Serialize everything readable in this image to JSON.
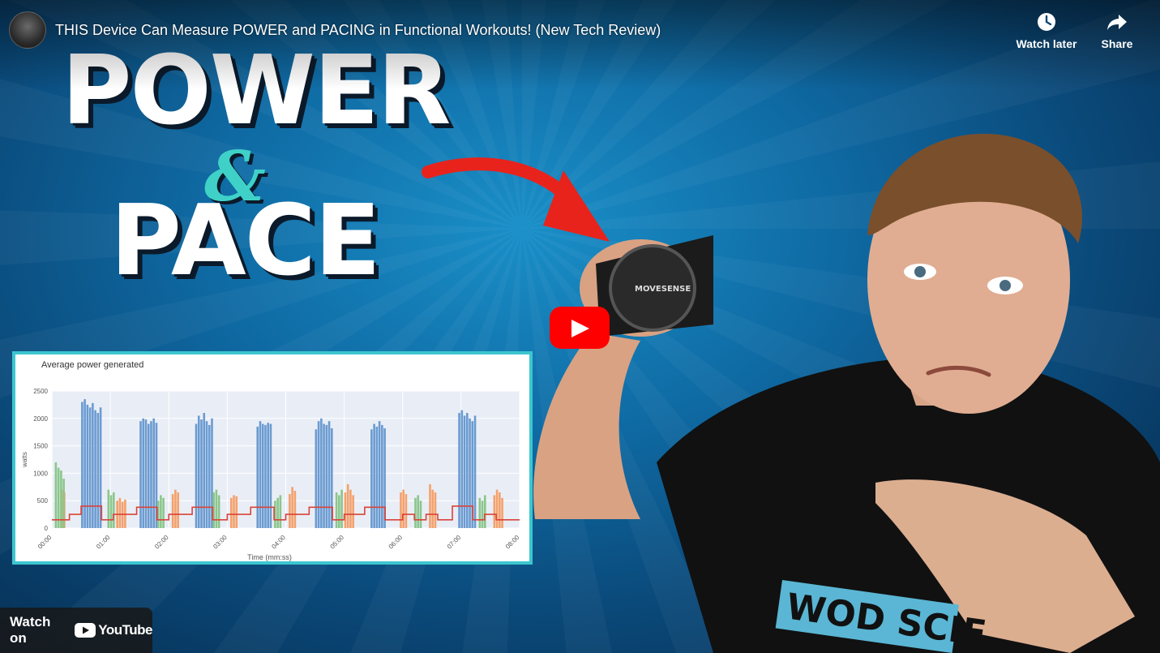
{
  "video": {
    "title": "THIS Device Can Measure POWER and PACING in Functional Workouts! (New Tech Review)"
  },
  "actions": {
    "watch_later": "Watch later",
    "share": "Share"
  },
  "thumbnail": {
    "headline_1": "POWER",
    "headline_amp": "&",
    "headline_2": "PACE",
    "device_brand": "MOVESENSE",
    "shirt_text": "WOD SCIE",
    "accent_color": "#3fd1c8",
    "arrow_color": "#e8231c"
  },
  "chart_data": {
    "type": "bar",
    "title": "Average power generated",
    "xlabel": "Time (mm:ss)",
    "ylabel": "watts",
    "ylim": [
      0,
      2500
    ],
    "yticks": [
      "0",
      "500",
      "1000",
      "1500",
      "2000",
      "2500"
    ],
    "xticks": [
      "00:00",
      "01:00",
      "02:00",
      "03:00",
      "04:00",
      "05:00",
      "06:00",
      "07:00",
      "08:00"
    ],
    "series": [
      {
        "color": "#6b9bd1",
        "bursts": [
          {
            "t": 0.5,
            "values": [
              2300,
              2350,
              2250,
              2200,
              2280,
              2150,
              2100,
              2200
            ]
          },
          {
            "t": 1.5,
            "values": [
              1950,
              2000,
              1980,
              1900,
              1950,
              2000,
              1920
            ]
          },
          {
            "t": 2.45,
            "values": [
              1900,
              2050,
              1980,
              2100,
              1950,
              1880,
              2000
            ]
          },
          {
            "t": 3.5,
            "values": [
              1850,
              1950,
              1900,
              1880,
              1920,
              1900
            ]
          },
          {
            "t": 4.5,
            "values": [
              1800,
              1950,
              2000,
              1900,
              1880,
              1950,
              1820
            ]
          },
          {
            "t": 5.45,
            "values": [
              1800,
              1900,
              1850,
              1950,
              1880,
              1820
            ]
          },
          {
            "t": 6.95,
            "values": [
              2100,
              2150,
              2050,
              2100,
              2000,
              1950,
              2050
            ]
          }
        ]
      },
      {
        "color": "#f5a06b",
        "bursts": [
          {
            "t": 1.1,
            "values": [
              500,
              550,
              480,
              520
            ]
          },
          {
            "t": 2.05,
            "values": [
              620,
              700,
              650
            ]
          },
          {
            "t": 3.05,
            "values": [
              550,
              600,
              580
            ]
          },
          {
            "t": 4.05,
            "values": [
              620,
              750,
              680
            ]
          },
          {
            "t": 5.0,
            "values": [
              650,
              800,
              700,
              600
            ]
          },
          {
            "t": 5.95,
            "values": [
              650,
              700,
              620
            ]
          },
          {
            "t": 6.45,
            "values": [
              800,
              700,
              650
            ]
          },
          {
            "t": 7.55,
            "values": [
              600,
              700,
              650,
              550
            ]
          },
          {
            "t": 0.15,
            "values": [
              700,
              650
            ]
          }
        ]
      },
      {
        "color": "#8bc68b",
        "bursts": [
          {
            "t": 0.05,
            "values": [
              1200,
              1100,
              1050,
              900
            ]
          },
          {
            "t": 0.95,
            "values": [
              700,
              600,
              650
            ]
          },
          {
            "t": 1.8,
            "values": [
              500,
              600,
              550
            ]
          },
          {
            "t": 2.75,
            "values": [
              650,
              700,
              600
            ]
          },
          {
            "t": 3.8,
            "values": [
              500,
              550,
              600
            ]
          },
          {
            "t": 4.85,
            "values": [
              650,
              600,
              700
            ]
          },
          {
            "t": 6.2,
            "values": [
              550,
              600,
              500
            ]
          },
          {
            "t": 7.3,
            "values": [
              550,
              500,
              600
            ]
          }
        ]
      }
    ],
    "pace_line": {
      "color": "#d9433a",
      "points": [
        [
          0,
          150
        ],
        [
          0.3,
          150
        ],
        [
          0.3,
          250
        ],
        [
          0.5,
          250
        ],
        [
          0.5,
          400
        ],
        [
          0.85,
          400
        ],
        [
          0.85,
          150
        ],
        [
          1.05,
          150
        ],
        [
          1.05,
          250
        ],
        [
          1.45,
          250
        ],
        [
          1.45,
          380
        ],
        [
          1.8,
          380
        ],
        [
          1.8,
          150
        ],
        [
          2.0,
          150
        ],
        [
          2.0,
          250
        ],
        [
          2.4,
          250
        ],
        [
          2.4,
          380
        ],
        [
          2.75,
          380
        ],
        [
          2.75,
          150
        ],
        [
          3.0,
          150
        ],
        [
          3.0,
          250
        ],
        [
          3.4,
          250
        ],
        [
          3.4,
          380
        ],
        [
          3.8,
          380
        ],
        [
          3.8,
          150
        ],
        [
          4.0,
          150
        ],
        [
          4.0,
          250
        ],
        [
          4.4,
          250
        ],
        [
          4.4,
          380
        ],
        [
          4.8,
          380
        ],
        [
          4.8,
          150
        ],
        [
          5.0,
          150
        ],
        [
          5.0,
          250
        ],
        [
          5.35,
          250
        ],
        [
          5.35,
          380
        ],
        [
          5.7,
          380
        ],
        [
          5.7,
          150
        ],
        [
          6.0,
          150
        ],
        [
          6.0,
          250
        ],
        [
          6.2,
          250
        ],
        [
          6.2,
          150
        ],
        [
          6.4,
          150
        ],
        [
          6.4,
          250
        ],
        [
          6.6,
          250
        ],
        [
          6.6,
          150
        ],
        [
          6.85,
          150
        ],
        [
          6.85,
          400
        ],
        [
          7.2,
          400
        ],
        [
          7.2,
          150
        ],
        [
          7.4,
          150
        ],
        [
          7.4,
          250
        ],
        [
          7.6,
          250
        ],
        [
          7.6,
          150
        ],
        [
          8.0,
          150
        ]
      ]
    }
  },
  "watch_on": {
    "label": "Watch on",
    "brand": "YouTube"
  }
}
